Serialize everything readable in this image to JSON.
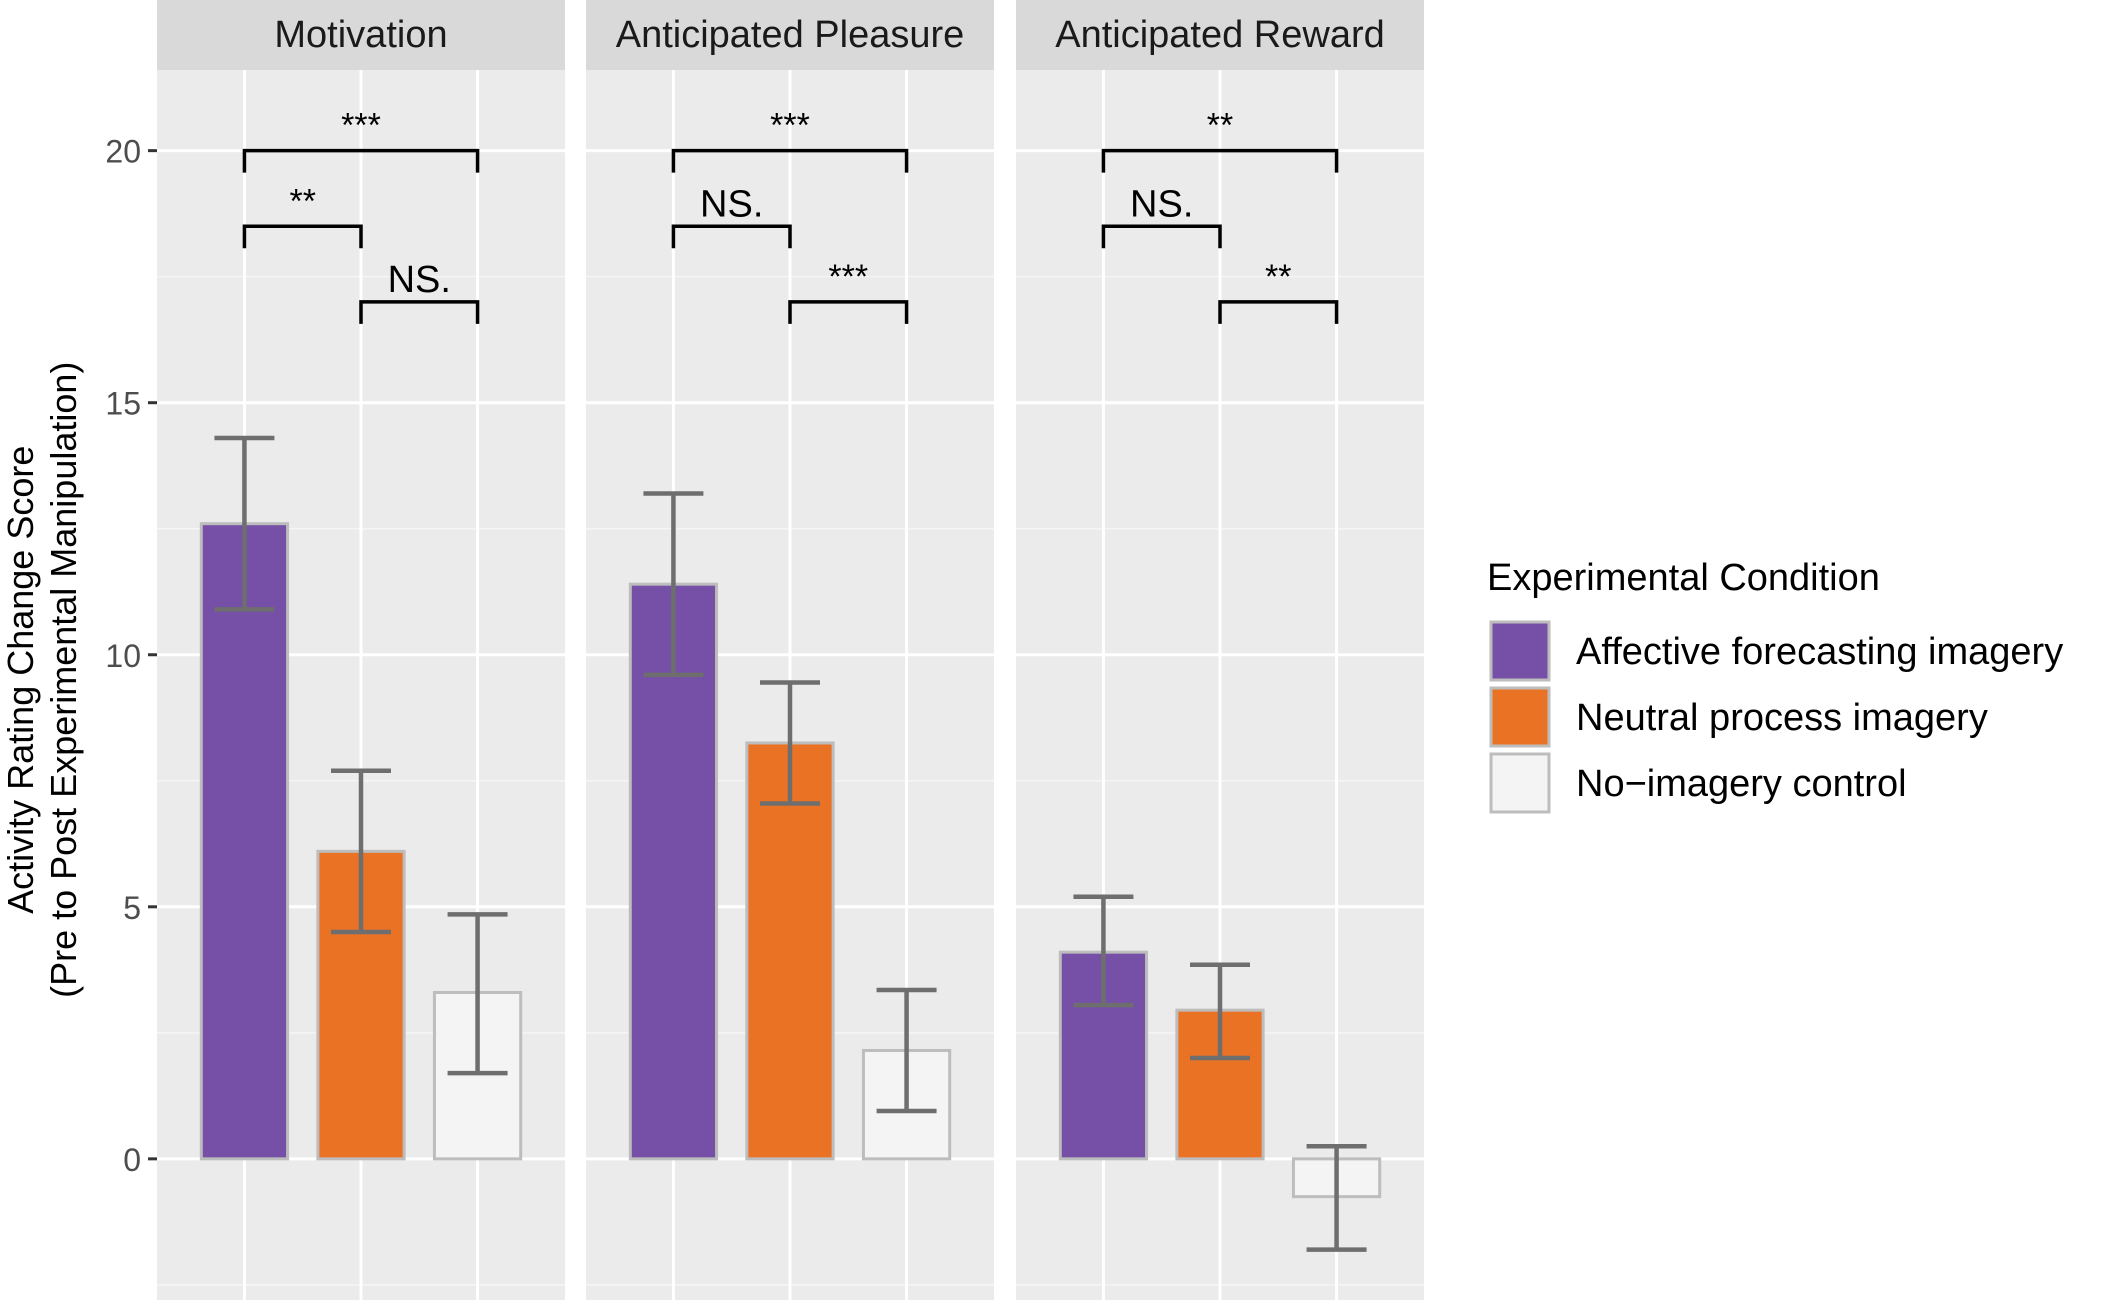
{
  "chart_data": {
    "type": "bar",
    "ylabel_line1": "Activity Rating Change Score",
    "ylabel_line2": "(Pre to Post Experimental Manipulation)",
    "ylim": [
      -2.8,
      21.6
    ],
    "yticks": [
      0,
      5,
      10,
      15,
      20
    ],
    "grid": true,
    "legend": {
      "title": "Experimental Condition",
      "placement": "right",
      "entries": [
        {
          "label": "Affective forecasting imagery",
          "color": "#7550a6"
        },
        {
          "label": "Neutral process imagery",
          "color": "#ea7225"
        },
        {
          "label": "No−imagery control",
          "color": "#f4f4f4"
        }
      ]
    },
    "series_colors": [
      "#7550a6",
      "#ea7225",
      "#f4f4f4"
    ],
    "panels": [
      {
        "title": "Motivation",
        "bars": [
          {
            "value": 12.6,
            "ci_low": 10.9,
            "ci_high": 14.3
          },
          {
            "value": 6.1,
            "ci_low": 4.5,
            "ci_high": 7.7
          },
          {
            "value": 3.3,
            "ci_low": 1.7,
            "ci_high": 4.85
          }
        ],
        "comparisons": [
          {
            "from": 0,
            "to": 2,
            "y": 20.0,
            "label": "***"
          },
          {
            "from": 0,
            "to": 1,
            "y": 18.5,
            "label": "**"
          },
          {
            "from": 1,
            "to": 2,
            "y": 17.0,
            "label": "NS."
          }
        ]
      },
      {
        "title": "Anticipated Pleasure",
        "bars": [
          {
            "value": 11.4,
            "ci_low": 9.6,
            "ci_high": 13.2
          },
          {
            "value": 8.25,
            "ci_low": 7.05,
            "ci_high": 9.45
          },
          {
            "value": 2.15,
            "ci_low": 0.95,
            "ci_high": 3.35
          }
        ],
        "comparisons": [
          {
            "from": 0,
            "to": 2,
            "y": 20.0,
            "label": "***"
          },
          {
            "from": 0,
            "to": 1,
            "y": 18.5,
            "label": "NS."
          },
          {
            "from": 1,
            "to": 2,
            "y": 17.0,
            "label": "***"
          }
        ]
      },
      {
        "title": "Anticipated Reward",
        "bars": [
          {
            "value": 4.1,
            "ci_low": 3.05,
            "ci_high": 5.2
          },
          {
            "value": 2.95,
            "ci_low": 2.0,
            "ci_high": 3.85
          },
          {
            "value": -0.75,
            "ci_low": -1.8,
            "ci_high": 0.25
          }
        ],
        "comparisons": [
          {
            "from": 0,
            "to": 2,
            "y": 20.0,
            "label": "**"
          },
          {
            "from": 0,
            "to": 1,
            "y": 18.5,
            "label": "NS."
          },
          {
            "from": 1,
            "to": 2,
            "y": 17.0,
            "label": "**"
          }
        ]
      }
    ]
  }
}
